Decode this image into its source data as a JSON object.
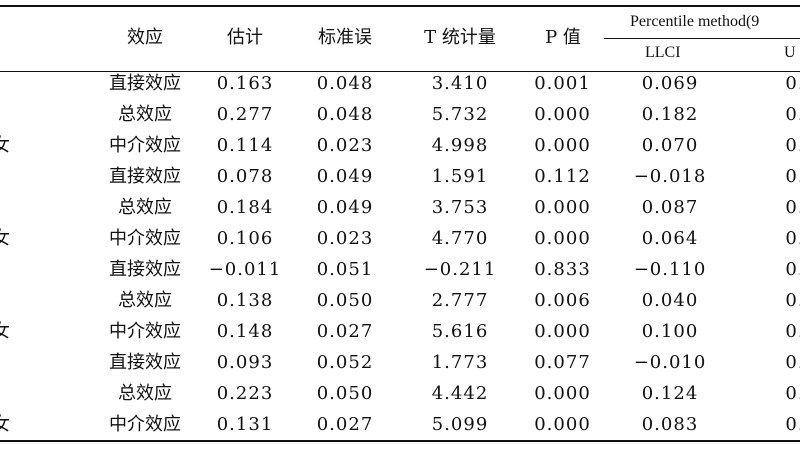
{
  "table": {
    "headers": {
      "effect": "效应",
      "estimate": "估计",
      "se": "标准误",
      "t": "T 统计量",
      "p": "P 值",
      "group": "Percentile method(9",
      "llci": "LLCI",
      "ulci": "U"
    },
    "rows": [
      {
        "cut": "",
        "effect": "直接效应",
        "estimate": "0.163",
        "se": "0.048",
        "t": "3.410",
        "p": "0.001",
        "llci": "0.069",
        "ulci": "0."
      },
      {
        "cut": "",
        "effect": "总效应",
        "estimate": "0.277",
        "se": "0.048",
        "t": "5.732",
        "p": "0.000",
        "llci": "0.182",
        "ulci": "0."
      },
      {
        "cut": "女",
        "effect": "中介效应",
        "estimate": "0.114",
        "se": "0.023",
        "t": "4.998",
        "p": "0.000",
        "llci": "0.070",
        "ulci": "0."
      },
      {
        "cut": "",
        "effect": "直接效应",
        "estimate": "0.078",
        "se": "0.049",
        "t": "1.591",
        "p": "0.112",
        "llci": "−0.018",
        "ulci": "0."
      },
      {
        "cut": "",
        "effect": "总效应",
        "estimate": "0.184",
        "se": "0.049",
        "t": "3.753",
        "p": "0.000",
        "llci": "0.087",
        "ulci": "0."
      },
      {
        "cut": "女",
        "effect": "中介效应",
        "estimate": "0.106",
        "se": "0.023",
        "t": "4.770",
        "p": "0.000",
        "llci": "0.064",
        "ulci": "0."
      },
      {
        "cut": "",
        "effect": "直接效应",
        "estimate": "−0.011",
        "se": "0.051",
        "t": "−0.211",
        "p": "0.833",
        "llci": "−0.110",
        "ulci": "0."
      },
      {
        "cut": "",
        "effect": "总效应",
        "estimate": "0.138",
        "se": "0.050",
        "t": "2.777",
        "p": "0.006",
        "llci": "0.040",
        "ulci": "0."
      },
      {
        "cut": "女",
        "effect": "中介效应",
        "estimate": "0.148",
        "se": "0.027",
        "t": "5.616",
        "p": "0.000",
        "llci": "0.100",
        "ulci": "0."
      },
      {
        "cut": "",
        "effect": "直接效应",
        "estimate": "0.093",
        "se": "0.052",
        "t": "1.773",
        "p": "0.077",
        "llci": "−0.010",
        "ulci": "0."
      },
      {
        "cut": "",
        "effect": "总效应",
        "estimate": "0.223",
        "se": "0.050",
        "t": "4.442",
        "p": "0.000",
        "llci": "0.124",
        "ulci": "0."
      },
      {
        "cut": "女",
        "effect": "中介效应",
        "estimate": "0.131",
        "se": "0.027",
        "t": "5.099",
        "p": "0.000",
        "llci": "0.083",
        "ulci": "0."
      }
    ]
  }
}
